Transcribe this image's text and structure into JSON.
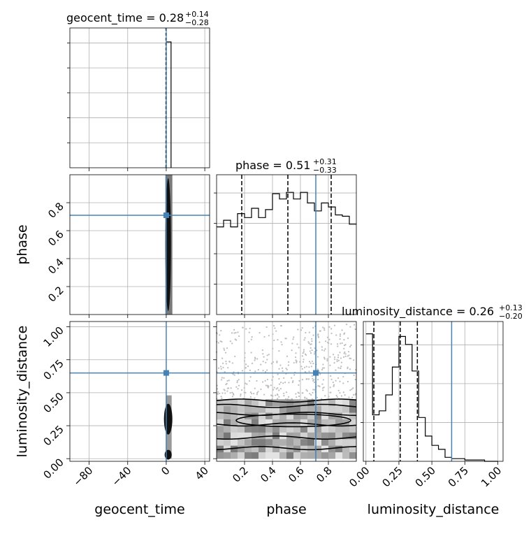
{
  "chart_data": {
    "type": "corner",
    "parameters": [
      "geocent_time",
      "phase",
      "luminosity_distance"
    ],
    "titles": [
      {
        "param": "geocent_time",
        "median": "0.28",
        "plus": "+0.14",
        "minus": "−0.28"
      },
      {
        "param": "phase",
        "median": "0.51",
        "plus": "+0.31",
        "minus": "−0.33"
      },
      {
        "param": "luminosity_distance",
        "median": "0.26",
        "plus": "+0.13",
        "minus": "−0.20"
      }
    ],
    "ranges": {
      "geocent_time": [
        -100,
        45
      ],
      "phase": [
        0.0,
        1.0
      ],
      "luminosity_distance": [
        -0.02,
        1.04
      ]
    },
    "ticks": {
      "geocent_time": [
        -80,
        -40,
        0,
        40
      ],
      "phase": [
        0.2,
        0.4,
        0.6,
        0.8
      ],
      "luminosity_distance": [
        0.0,
        0.25,
        0.5,
        0.75,
        1.0
      ]
    },
    "tick_labels": {
      "geocent_time": [
        "−80",
        "−40",
        "0",
        "40"
      ],
      "phase": [
        "0.2",
        "0.4",
        "0.6",
        "0.8"
      ],
      "luminosity_distance": [
        "0.00",
        "0.25",
        "0.50",
        "0.75",
        "1.00"
      ]
    },
    "truths": {
      "geocent_time": 0.0,
      "phase": 0.71,
      "luminosity_distance": 0.65
    },
    "quantiles": {
      "geocent_time": [
        0.0,
        0.28,
        0.42
      ],
      "phase": [
        0.18,
        0.51,
        0.82
      ],
      "luminosity_distance": [
        0.06,
        0.26,
        0.39
      ]
    },
    "hist_geocent_time": {
      "bins": [
        0,
        5
      ],
      "heights": [
        1.0
      ]
    },
    "hist_phase": {
      "edges": [
        0.0,
        0.05,
        0.1,
        0.15,
        0.2,
        0.25,
        0.3,
        0.35,
        0.4,
        0.45,
        0.5,
        0.55,
        0.6,
        0.65,
        0.7,
        0.75,
        0.8,
        0.85,
        0.9,
        0.95,
        1.0
      ],
      "heights": [
        0.66,
        0.71,
        0.66,
        0.76,
        0.73,
        0.8,
        0.73,
        0.79,
        0.91,
        0.87,
        0.92,
        0.87,
        0.92,
        0.84,
        0.78,
        0.84,
        0.81,
        0.75,
        0.74,
        0.68
      ]
    },
    "hist_luminosity_distance": {
      "edges": [
        0.0,
        0.05,
        0.1,
        0.15,
        0.2,
        0.25,
        0.3,
        0.35,
        0.4,
        0.45,
        0.5,
        0.55,
        0.6,
        0.65,
        0.7,
        0.75,
        0.8,
        0.85,
        0.9,
        0.95,
        1.0
      ],
      "heights": [
        0.96,
        0.35,
        0.38,
        0.5,
        0.71,
        0.94,
        0.88,
        0.68,
        0.33,
        0.19,
        0.12,
        0.09,
        0.03,
        0.02,
        0.02,
        0.01,
        0.01,
        0.01,
        0.0,
        0.0
      ]
    }
  }
}
